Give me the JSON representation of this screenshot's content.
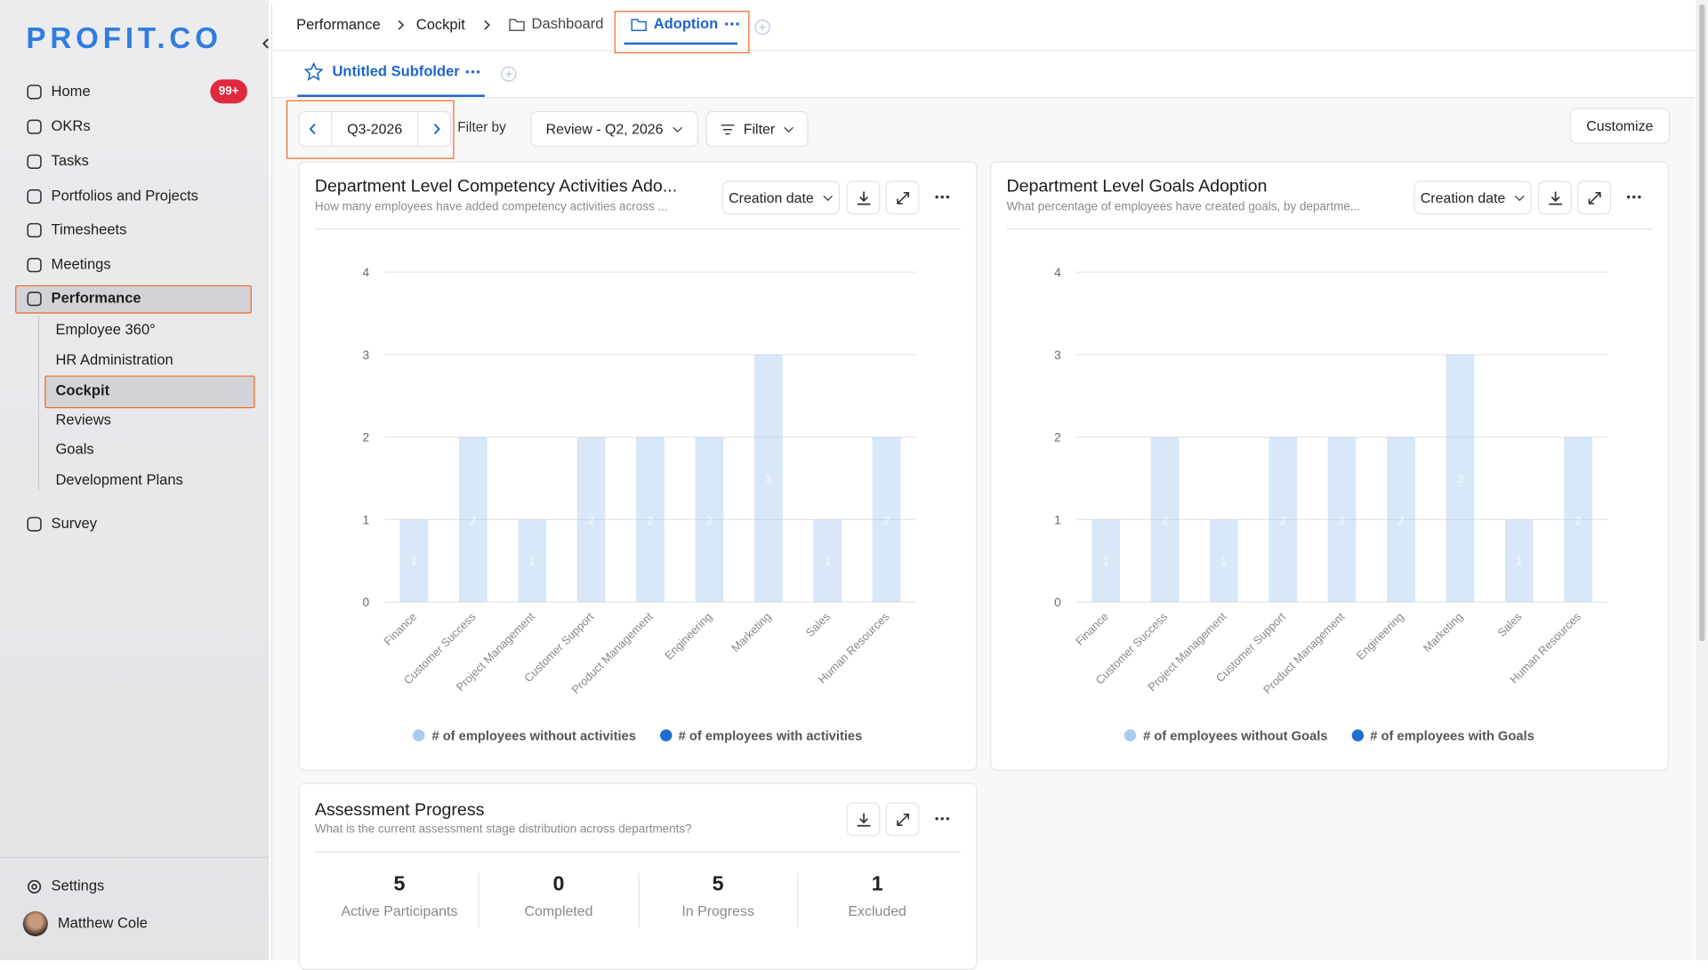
{
  "logo": "PROFIT.CO",
  "sidebar": {
    "items": [
      "Home",
      "OKRs",
      "Tasks",
      "Portfolios and Projects",
      "Timesheets",
      "Meetings",
      "Performance"
    ],
    "badge": "99+",
    "sub_items": [
      "Employee 360°",
      "HR Administration",
      "Cockpit",
      "Reviews",
      "Goals",
      "Development Plans"
    ],
    "survey": "Survey",
    "settings": "Settings",
    "user": "Matthew Cole"
  },
  "breadcrumbs": [
    "Performance",
    "Cockpit",
    "Dashboard",
    "Adoption"
  ],
  "subtab": "Untitled Subfolder",
  "toolbar": {
    "period": "Q3-2026",
    "filter_label": "Filter by",
    "review": "Review - Q2, 2026",
    "filter": "Filter",
    "customize": "Customize"
  },
  "chart_data": [
    {
      "type": "bar",
      "title": "Department Level Competency Activities Ado...",
      "subtitle": "How many employees have added competency activities across ...",
      "date_filter": "Creation date",
      "categories": [
        "Finance",
        "Customer Success",
        "Project Management",
        "Customer Support",
        "Product Management",
        "Engineering",
        "Marketing",
        "Sales",
        "Human Resources"
      ],
      "series": [
        {
          "name": "# of employees without activities",
          "color": "#a9cbef",
          "values": [
            1,
            2,
            1,
            2,
            2,
            2,
            3,
            1,
            2
          ]
        },
        {
          "name": "# of employees with activities",
          "color": "#1f6fd1",
          "values": [
            0,
            0,
            0,
            0,
            0,
            0,
            0,
            0,
            0
          ]
        }
      ],
      "ylim": [
        0,
        4
      ],
      "yticks": [
        0,
        1,
        2,
        3,
        4
      ],
      "grid": true,
      "stacked": true
    },
    {
      "type": "bar",
      "title": "Department Level Goals Adoption",
      "subtitle": "What percentage of employees have created goals, by departme...",
      "date_filter": "Creation date",
      "categories": [
        "Finance",
        "Customer Success",
        "Project Management",
        "Customer Support",
        "Product Management",
        "Engineering",
        "Marketing",
        "Sales",
        "Human Resources"
      ],
      "series": [
        {
          "name": "# of employees without Goals",
          "color": "#a9cbef",
          "values": [
            1,
            2,
            1,
            2,
            2,
            2,
            3,
            1,
            2
          ]
        },
        {
          "name": "# of employees with Goals",
          "color": "#1f6fd1",
          "values": [
            0,
            0,
            0,
            0,
            0,
            0,
            0,
            0,
            0
          ]
        }
      ],
      "ylim": [
        0,
        4
      ],
      "yticks": [
        0,
        1,
        2,
        3,
        4
      ],
      "grid": true,
      "stacked": true
    }
  ],
  "assessment": {
    "title": "Assessment Progress",
    "subtitle": "What is the current assessment stage distribution across departments?",
    "stats": [
      {
        "value": 5,
        "label": "Active Participants"
      },
      {
        "value": 0,
        "label": "Completed"
      },
      {
        "value": 5,
        "label": "In Progress"
      },
      {
        "value": 1,
        "label": "Excluded"
      }
    ]
  }
}
